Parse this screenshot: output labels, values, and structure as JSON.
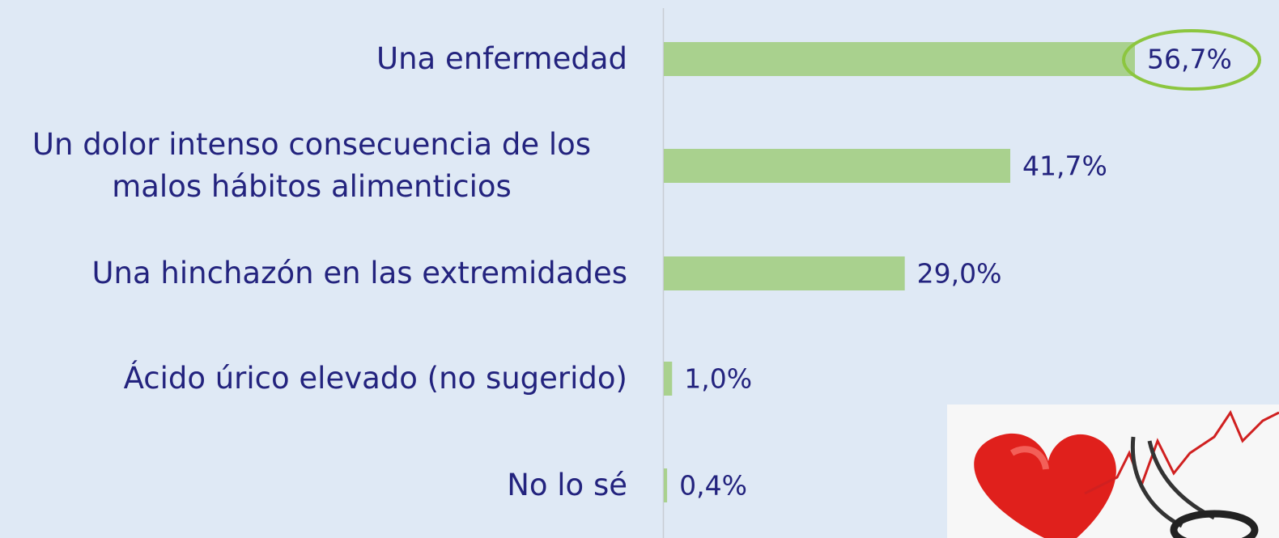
{
  "chart_data": {
    "type": "bar",
    "orientation": "horizontal",
    "categories": [
      "Una enfermedad",
      "Un dolor intenso consecuencia de los malos hábitos alimenticios",
      "Una hinchazón en las extremidades",
      "Ácido úrico elevado (no sugerido)",
      "No lo sé"
    ],
    "values": [
      56.7,
      41.7,
      29.0,
      1.0,
      0.4
    ],
    "value_labels": [
      "56,7%",
      "41,7%",
      "29,0%",
      "1,0%",
      "0,4%"
    ],
    "color": "#a9d18e"
  }
}
